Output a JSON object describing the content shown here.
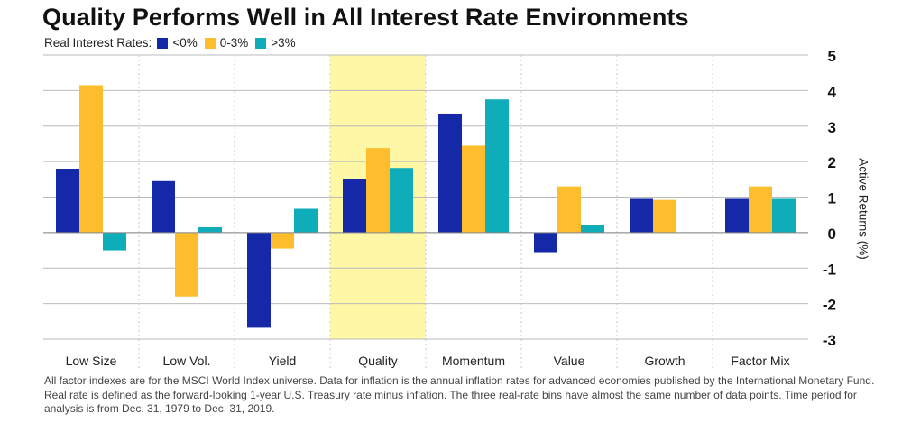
{
  "title": "Quality Performs Well in All Interest Rate Environments",
  "legend_title": "Real Interest Rates:",
  "footnote": "All factor indexes are for the MSCI World Index universe. Data for inflation is the annual inflation rates for advanced economies published by the International Monetary Fund. Real rate is defined as the forward-looking 1-year U.S. Treasury rate minus inflation. The three real-rate bins have almost the same number of data points. Time period for analysis is from Dec. 31, 1979 to Dec. 31, 2019.",
  "colors": {
    "below_zero": "#1428a8",
    "zero_to_three": "#fdbd2c",
    "above_three": "#0fadb9",
    "highlight": "#fdf7a6",
    "gridline": "#bbbbbb"
  },
  "chart_data": {
    "type": "bar",
    "categories": [
      "Low Size",
      "Low Vol.",
      "Yield",
      "Quality",
      "Momentum",
      "Value",
      "Growth",
      "Factor Mix"
    ],
    "series": [
      {
        "name": "<0%",
        "color": "#1428a8",
        "values": [
          1.8,
          1.45,
          -2.68,
          1.5,
          3.35,
          -0.55,
          0.95,
          0.95
        ]
      },
      {
        "name": "0-3%",
        "color": "#fdbd2c",
        "values": [
          4.15,
          -1.8,
          -0.45,
          2.38,
          2.45,
          1.3,
          0.92,
          1.3
        ]
      },
      {
        "name": ">3%",
        "color": "#0fadb9",
        "values": [
          -0.5,
          0.15,
          0.67,
          1.82,
          3.75,
          0.22,
          null,
          0.95
        ]
      }
    ],
    "ylabel": "Active Returns (%)",
    "ylim": [
      -3,
      5
    ],
    "yticks": [
      5,
      4,
      3,
      2,
      1,
      0,
      -1,
      -2,
      -3
    ],
    "highlight_category": "Quality",
    "grid": true,
    "legend_position": "top-left"
  }
}
